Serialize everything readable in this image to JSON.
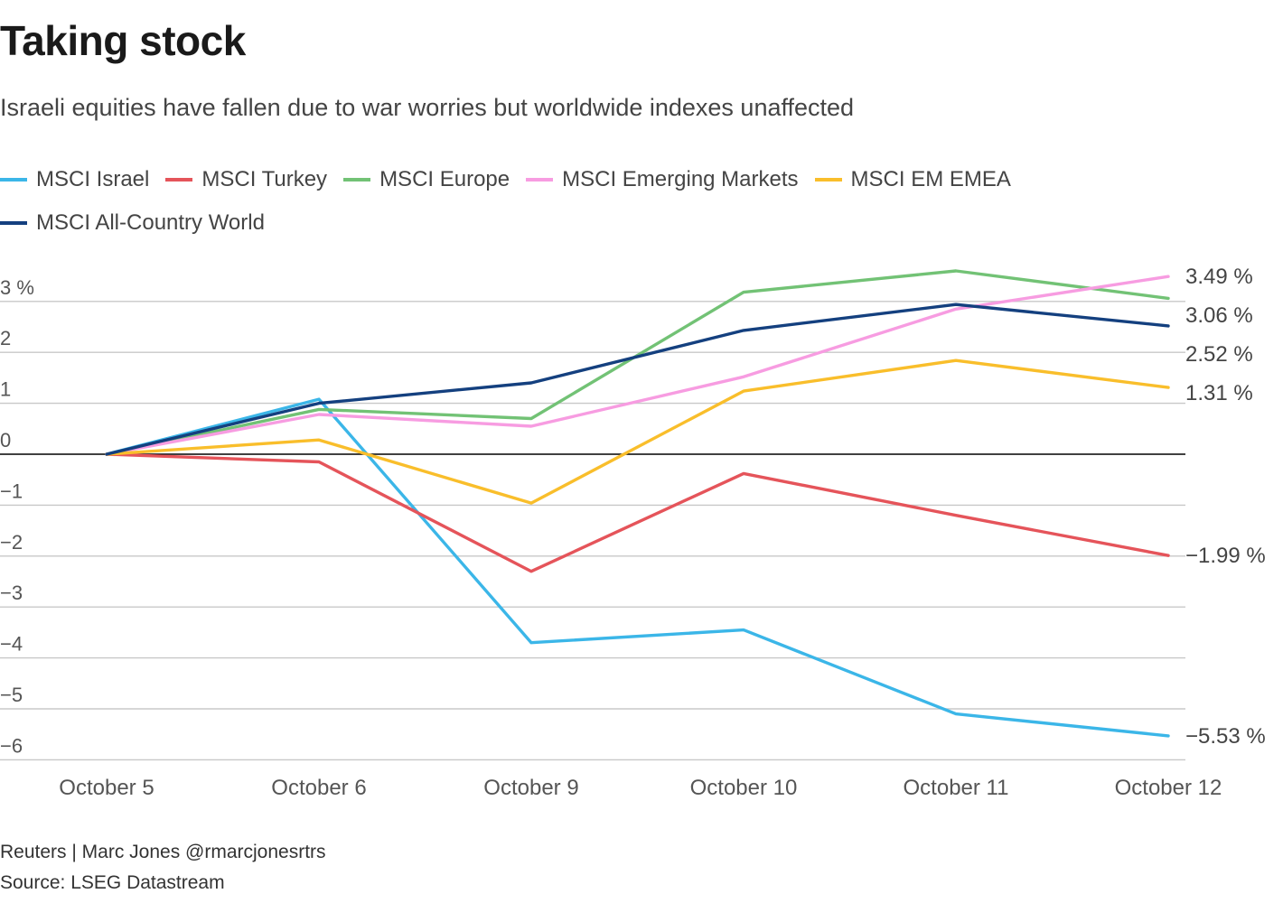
{
  "title": "Taking stock",
  "subtitle": "Israeli equities have fallen due to war worries but worldwide indexes unaffected",
  "byline": "Reuters | Marc Jones @rmarcjonesrtrs",
  "source": "Source: LSEG Datastream",
  "chart_data": {
    "type": "line",
    "categories": [
      "October 5",
      "October 6",
      "October 9",
      "October 10",
      "October 11",
      "October 12"
    ],
    "ylim": [
      -6.7,
      3.5
    ],
    "yticks": [
      {
        "value": 3,
        "label": "3 %"
      },
      {
        "value": 2,
        "label": "2"
      },
      {
        "value": 1,
        "label": "1"
      },
      {
        "value": 0,
        "label": "0"
      },
      {
        "value": -1,
        "label": "−1"
      },
      {
        "value": -2,
        "label": "−2"
      },
      {
        "value": -3,
        "label": "−3"
      },
      {
        "value": -4,
        "label": "−4"
      },
      {
        "value": -5,
        "label": "−5"
      },
      {
        "value": -6,
        "label": "−6"
      }
    ],
    "series": [
      {
        "name": "MSCI Israel",
        "color": "#3bb6e8",
        "values": [
          0,
          1.08,
          -3.7,
          -3.45,
          -5.1,
          -5.53
        ]
      },
      {
        "name": "MSCI Turkey",
        "color": "#e5545a",
        "values": [
          0,
          -0.15,
          -2.3,
          -0.38,
          -1.2,
          -1.99
        ]
      },
      {
        "name": "MSCI Europe",
        "color": "#72c275",
        "values": [
          0,
          0.88,
          0.7,
          3.18,
          3.6,
          3.06
        ]
      },
      {
        "name": "MSCI Emerging Markets",
        "color": "#f79ce1",
        "values": [
          0,
          0.78,
          0.55,
          1.52,
          2.85,
          3.49
        ]
      },
      {
        "name": "MSCI EM EMEA",
        "color": "#f9be2b",
        "values": [
          0,
          0.28,
          -0.96,
          1.24,
          1.84,
          1.31
        ]
      },
      {
        "name": "MSCI All-Country World",
        "color": "#14407f",
        "values": [
          0,
          1.0,
          1.4,
          2.43,
          2.94,
          2.52
        ]
      }
    ],
    "end_labels": [
      {
        "series": "MSCI Emerging Markets",
        "text": "3.49 %"
      },
      {
        "series": "MSCI Europe",
        "text": "3.06 %"
      },
      {
        "series": "MSCI All-Country World",
        "text": "2.52 %"
      },
      {
        "series": "MSCI EM EMEA",
        "text": "1.31 %"
      },
      {
        "series": "MSCI Turkey",
        "text": "−1.99 %"
      },
      {
        "series": "MSCI Israel",
        "text": "−5.53 %"
      }
    ]
  }
}
